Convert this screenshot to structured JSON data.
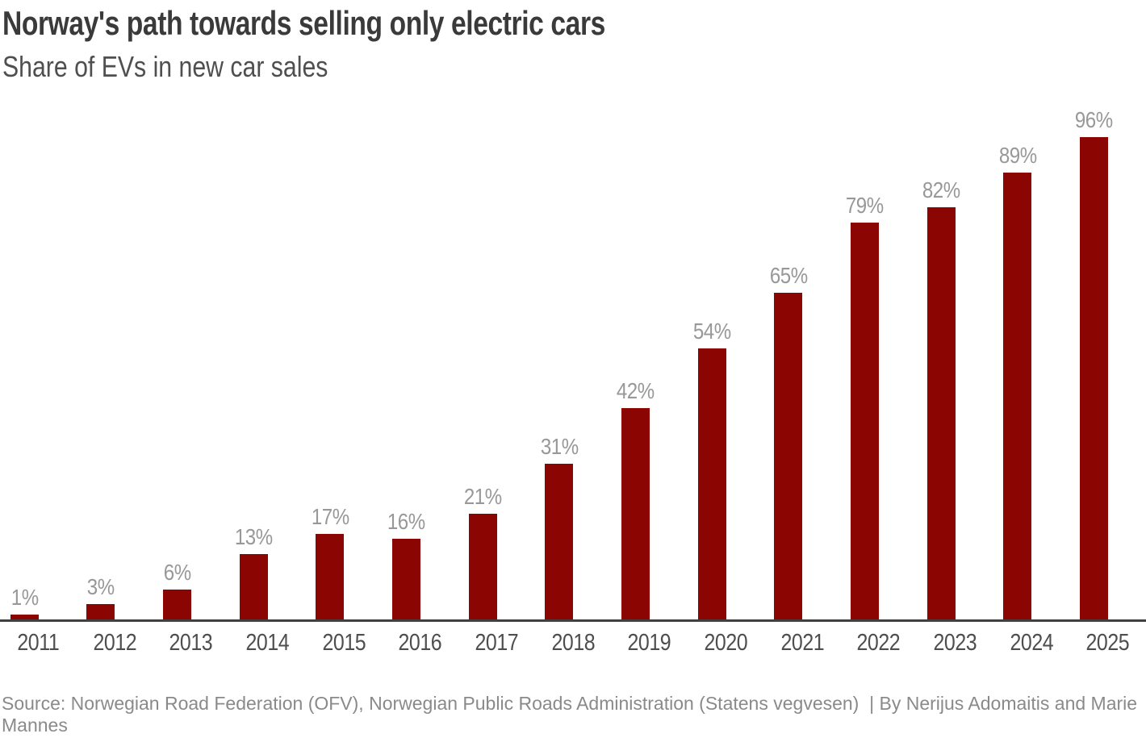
{
  "page": {
    "title": "Norway's path towards selling only electric cars",
    "subtitle": "Share of EVs in new car sales",
    "source": "Source: Norwegian Road Federation (OFV), Norwegian Public Roads Administration (Statens vegvesen)  | By Nerijus Adomaitis and Marie Mannes"
  },
  "colors": {
    "bar": "#8B0603",
    "title_text": "#3a3a3a",
    "subtitle_text": "#4f4f4f",
    "value_label": "#989898",
    "year_label": "#4e4e4e",
    "axis_line": "#404040",
    "source_text": "#8a8a8a",
    "background": "#ffffff"
  },
  "chart_data": {
    "type": "bar",
    "title": "Norway's path towards selling only electric cars",
    "subtitle": "Share of EVs in new car sales",
    "categories": [
      "2011",
      "2012",
      "2013",
      "2014",
      "2015",
      "2016",
      "2017",
      "2018",
      "2019",
      "2020",
      "2021",
      "2022",
      "2023",
      "2024",
      "2025"
    ],
    "values": [
      1,
      3,
      6,
      13,
      17,
      16,
      21,
      31,
      42,
      54,
      65,
      79,
      82,
      89,
      96
    ],
    "value_label_suffix": "%",
    "xlabel": "",
    "ylabel": "Share of EVs in new car sales (%)",
    "ylim": [
      0,
      100
    ],
    "grid": false,
    "legend_position": "none",
    "bar_color": "#8B0603",
    "data_labels_shown": true,
    "y_axis_shown": false
  }
}
